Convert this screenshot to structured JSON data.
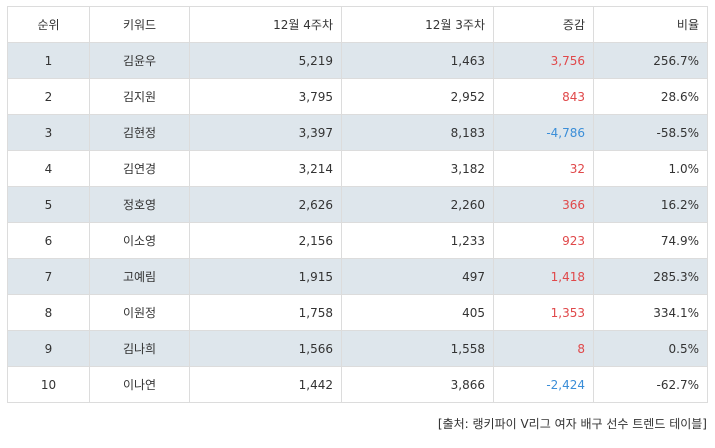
{
  "table": {
    "headers": {
      "rank": "순위",
      "keyword": "키워드",
      "week4": "12월 4주차",
      "week3": "12월 3주차",
      "change": "증감",
      "ratio": "비율"
    },
    "rows": [
      {
        "rank": "1",
        "keyword": "김윤우",
        "week4": "5,219",
        "week3": "1,463",
        "change": "3,756",
        "ratio": "256.7%",
        "trend": "up"
      },
      {
        "rank": "2",
        "keyword": "김지원",
        "week4": "3,795",
        "week3": "2,952",
        "change": "843",
        "ratio": "28.6%",
        "trend": "up"
      },
      {
        "rank": "3",
        "keyword": "김현정",
        "week4": "3,397",
        "week3": "8,183",
        "change": "-4,786",
        "ratio": "-58.5%",
        "trend": "down"
      },
      {
        "rank": "4",
        "keyword": "김연경",
        "week4": "3,214",
        "week3": "3,182",
        "change": "32",
        "ratio": "1.0%",
        "trend": "up"
      },
      {
        "rank": "5",
        "keyword": "정호영",
        "week4": "2,626",
        "week3": "2,260",
        "change": "366",
        "ratio": "16.2%",
        "trend": "up"
      },
      {
        "rank": "6",
        "keyword": "이소영",
        "week4": "2,156",
        "week3": "1,233",
        "change": "923",
        "ratio": "74.9%",
        "trend": "up"
      },
      {
        "rank": "7",
        "keyword": "고예림",
        "week4": "1,915",
        "week3": "497",
        "change": "1,418",
        "ratio": "285.3%",
        "trend": "up"
      },
      {
        "rank": "8",
        "keyword": "이원정",
        "week4": "1,758",
        "week3": "405",
        "change": "1,353",
        "ratio": "334.1%",
        "trend": "up"
      },
      {
        "rank": "9",
        "keyword": "김나희",
        "week4": "1,566",
        "week3": "1,558",
        "change": "8",
        "ratio": "0.5%",
        "trend": "up"
      },
      {
        "rank": "10",
        "keyword": "이나연",
        "week4": "1,442",
        "week3": "3,866",
        "change": "-2,424",
        "ratio": "-62.7%",
        "trend": "down"
      }
    ]
  },
  "source": "[출처: 랭키파이 V리그 여자 배구 선수 트렌드 테이블]",
  "colors": {
    "increase": "#e0484a",
    "decrease": "#3b8ed8",
    "shaded_row": "#dee6ec"
  }
}
